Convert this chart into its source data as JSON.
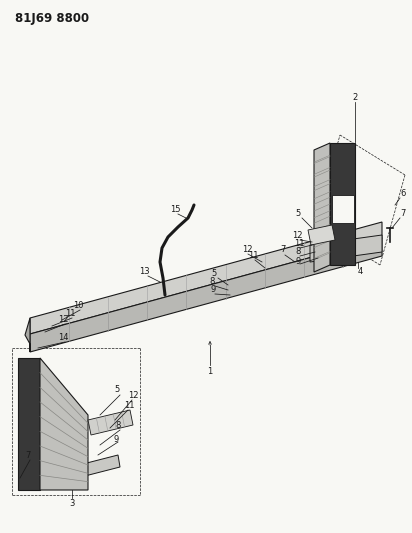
{
  "title": "81J69 8800",
  "bg_color": "#f8f8f4",
  "fig_width": 4.12,
  "fig_height": 5.33,
  "dpi": 100,
  "line_color": "#1a1a1a",
  "label_fontsize": 6.0,
  "title_fontsize": 8.5
}
